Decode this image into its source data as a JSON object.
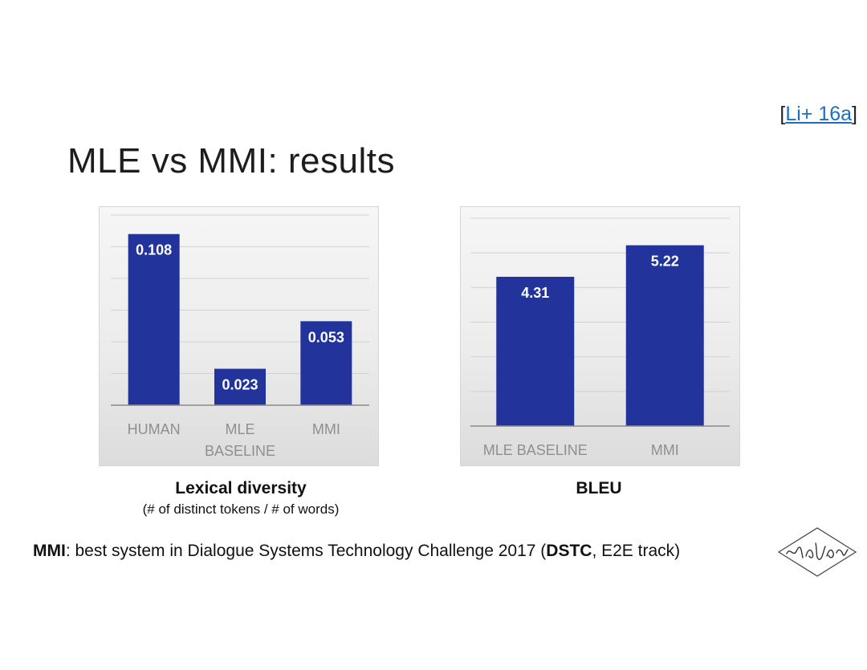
{
  "citation": {
    "open": "[",
    "link": "Li+ 16a",
    "close": "]"
  },
  "title": "MLE vs MMI: results",
  "chart_data": [
    {
      "type": "bar",
      "categories": [
        [
          "HUMAN"
        ],
        [
          "MLE",
          "BASELINE"
        ],
        [
          "MMI"
        ]
      ],
      "values": [
        0.108,
        0.023,
        0.053
      ],
      "value_labels": [
        "0.108",
        "0.023",
        "0.053"
      ],
      "ylim": [
        0,
        0.12
      ],
      "grid": true,
      "bar_color": "#22349c",
      "caption": "Lexical diversity",
      "caption_sub": "(# of distinct tokens / # of words)"
    },
    {
      "type": "bar",
      "categories": [
        [
          "MLE BASELINE"
        ],
        [
          "MMI"
        ]
      ],
      "values": [
        4.31,
        5.22
      ],
      "value_labels": [
        "4.31",
        "5.22"
      ],
      "ylim": [
        0,
        6
      ],
      "grid": true,
      "bar_color": "#22349c",
      "caption": "BLEU",
      "caption_sub": ""
    }
  ],
  "footnote": {
    "bold1": "MMI",
    "text1": ": best system in Dialogue Systems Technology Challenge 2017 (",
    "bold2": "DSTC",
    "text2": ", E2E track)"
  },
  "logo": {
    "icon": "isca-logo-icon"
  }
}
